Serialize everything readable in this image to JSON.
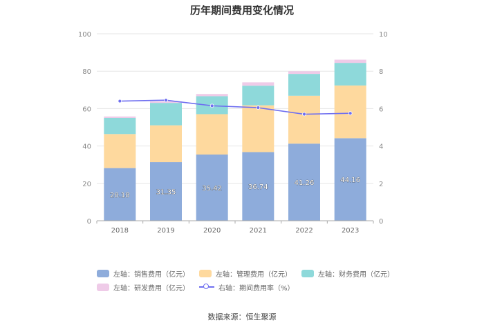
{
  "title": "历年期间费用变化情况",
  "source": "数据来源：恒生聚源",
  "chart_data": {
    "type": "bar",
    "stacked": true,
    "categories": [
      "2018",
      "2019",
      "2020",
      "2021",
      "2022",
      "2023"
    ],
    "series": [
      {
        "name": "左轴：销售费用（亿元）",
        "axis": "left",
        "color": "#8eacdb",
        "values": [
          28.18,
          31.35,
          35.42,
          36.74,
          41.26,
          44.16
        ],
        "labels": [
          "28.18",
          "31.35",
          "35.42",
          "36.74",
          "41.26",
          "44.16"
        ]
      },
      {
        "name": "左轴：管理费用（亿元）",
        "axis": "left",
        "color": "#fed99e",
        "values": [
          18.2,
          19.7,
          21.6,
          25.0,
          25.6,
          28.2
        ]
      },
      {
        "name": "左轴：财务费用（亿元）",
        "axis": "left",
        "color": "#8ed9da",
        "values": [
          8.6,
          12.0,
          9.6,
          10.5,
          11.7,
          12.1
        ]
      },
      {
        "name": "左轴：研发费用（亿元）",
        "axis": "left",
        "color": "#efcbe8",
        "values": [
          0.8,
          0.8,
          1.2,
          1.8,
          1.4,
          1.7
        ]
      }
    ],
    "line_series": {
      "name": "右轴：期间费用率（%）",
      "axis": "right",
      "color": "#6f6ff0",
      "values": [
        6.4,
        6.45,
        6.15,
        6.05,
        5.7,
        5.75
      ]
    },
    "y_left": {
      "min": 0,
      "max": 100,
      "ticks": [
        "0",
        "20",
        "40",
        "60",
        "80",
        "100"
      ]
    },
    "y_right": {
      "min": 0,
      "max": 10,
      "ticks": [
        "0",
        "2",
        "4",
        "6",
        "8",
        "10"
      ]
    },
    "grid": true,
    "legend_position": "bottom"
  }
}
